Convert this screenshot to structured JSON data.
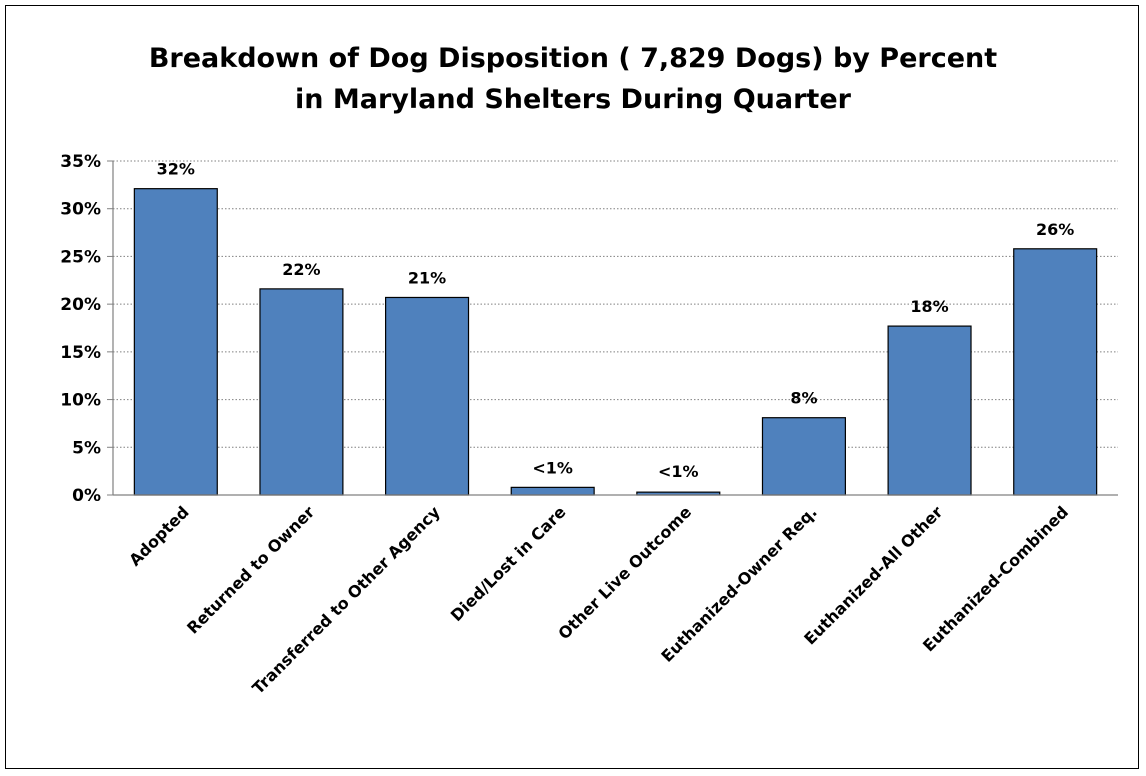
{
  "chart_data": {
    "type": "bar",
    "title_lines": [
      "Breakdown of Dog Disposition ( 7,829 Dogs) by Percent",
      "in Maryland Shelters During Quarter"
    ],
    "categories": [
      "Adopted",
      "Returned to Owner",
      "Transferred to Other Agency",
      "Died/Lost in Care",
      "Other Live Outcome",
      "Euthanized-Owner Req.",
      "Euthanized-All Other",
      "Euthanized-Combined"
    ],
    "values": [
      32.1,
      21.6,
      20.7,
      0.8,
      0.3,
      8.1,
      17.7,
      25.8
    ],
    "data_labels": [
      "32%",
      "22%",
      "21%",
      "<1%",
      "<1%",
      "8%",
      "18%",
      "26%"
    ],
    "ylim": [
      0,
      35
    ],
    "yticks": [
      0,
      5,
      10,
      15,
      20,
      25,
      30,
      35
    ],
    "ytick_labels": [
      "0%",
      "5%",
      "10%",
      "15%",
      "20%",
      "25%",
      "30%",
      "35%"
    ],
    "grid": true,
    "bar_color": "#4F81BD",
    "legend": "none"
  }
}
